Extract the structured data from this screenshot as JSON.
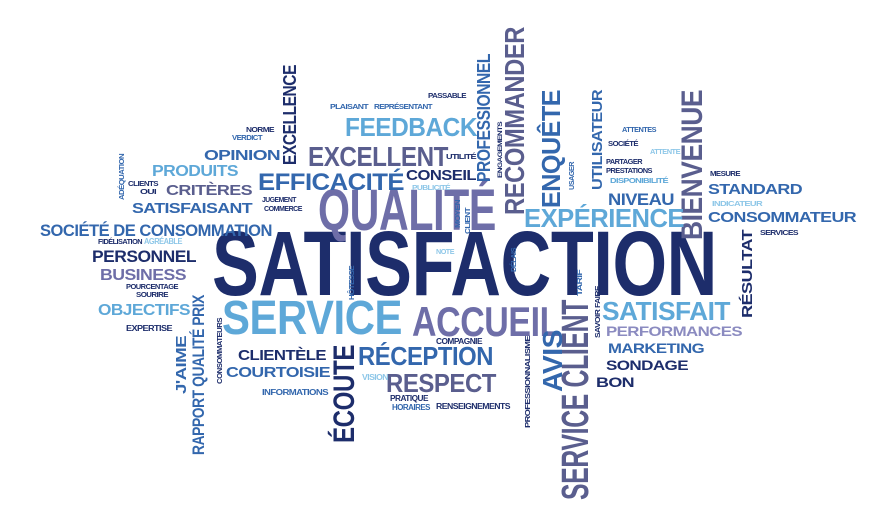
{
  "cloud": {
    "colors": {
      "navy": "#1d2d6b",
      "darkblue": "#2a3f86",
      "blue": "#3367ad",
      "midblue": "#3f7fbf",
      "lightblue": "#5ea8d8",
      "paleblue": "#8ec7e8",
      "slate": "#5a5e8e",
      "purple": "#6e6ea8",
      "lavender": "#8b8bc0"
    },
    "words": [
      {
        "id": "satisfaction",
        "text": "SATISFACTION",
        "color": "navy"
      },
      {
        "id": "qualite",
        "text": "QUALITÉ",
        "color": "purple"
      },
      {
        "id": "service",
        "text": "SERVICE",
        "color": "lightblue"
      },
      {
        "id": "accueil",
        "text": "ACCUEIL",
        "color": "purple"
      },
      {
        "id": "service-client",
        "text": "SERVICE CLIENT",
        "color": "slate"
      },
      {
        "id": "bienvenue",
        "text": "BIENVENUE",
        "color": "slate"
      },
      {
        "id": "recommander",
        "text": "RECOMMANDER",
        "color": "slate"
      },
      {
        "id": "excellent",
        "text": "EXCELLENT",
        "color": "slate"
      },
      {
        "id": "feedback",
        "text": "FEEDBACK",
        "color": "lightblue"
      },
      {
        "id": "efficacite",
        "text": "EFFICACITÉ",
        "color": "blue"
      },
      {
        "id": "experience",
        "text": "EXPÉRIENCE",
        "color": "lightblue"
      },
      {
        "id": "enquete",
        "text": "ENQUÊTE",
        "color": "blue"
      },
      {
        "id": "reception",
        "text": "RÉCEPTION",
        "color": "blue"
      },
      {
        "id": "respect",
        "text": "RESPECT",
        "color": "slate"
      },
      {
        "id": "avis",
        "text": "AVIS",
        "color": "blue"
      },
      {
        "id": "ecoute",
        "text": "ÉCOUTE",
        "color": "navy"
      },
      {
        "id": "satisfait",
        "text": "SATISFAIT",
        "color": "lightblue"
      },
      {
        "id": "excellence",
        "text": "EXCELLENCE",
        "color": "navy"
      },
      {
        "id": "professionnel",
        "text": "PROFESSIONNEL",
        "color": "blue"
      },
      {
        "id": "rapport-qualite-prix",
        "text": "RAPPORT QUALITÉ PRIX",
        "color": "blue"
      },
      {
        "id": "societe-de-consommation",
        "text": "SOCIÉTÉ DE CONSOMMATION",
        "color": "blue"
      },
      {
        "id": "personnel",
        "text": "PERSONNEL",
        "color": "navy"
      },
      {
        "id": "business",
        "text": "BUSINESS",
        "color": "purple"
      },
      {
        "id": "objectifs",
        "text": "OBJECTIFS",
        "color": "lightblue"
      },
      {
        "id": "produits",
        "text": "PRODUITS",
        "color": "lightblue"
      },
      {
        "id": "criteres",
        "text": "CRITÈRES",
        "color": "slate"
      },
      {
        "id": "satisfaisant",
        "text": "SATISFAISANT",
        "color": "blue"
      },
      {
        "id": "opinion",
        "text": "OPINION",
        "color": "blue"
      },
      {
        "id": "conseil",
        "text": "CONSEIL",
        "color": "navy"
      },
      {
        "id": "utilisateur",
        "text": "UTILISATEUR",
        "color": "blue"
      },
      {
        "id": "niveau",
        "text": "NIVEAU",
        "color": "blue"
      },
      {
        "id": "standard",
        "text": "STANDARD",
        "color": "blue"
      },
      {
        "id": "consommateur",
        "text": "CONSOMMATEUR",
        "color": "blue"
      },
      {
        "id": "resultat",
        "text": "RÉSULTAT",
        "color": "navy"
      },
      {
        "id": "performances",
        "text": "PERFORMANCES",
        "color": "lavender"
      },
      {
        "id": "marketing",
        "text": "MARKETING",
        "color": "blue"
      },
      {
        "id": "sondage",
        "text": "SONDAGE",
        "color": "navy"
      },
      {
        "id": "bon",
        "text": "BON",
        "color": "navy"
      },
      {
        "id": "clientele",
        "text": "CLIENTÈLE",
        "color": "navy"
      },
      {
        "id": "courtoisie",
        "text": "COURTOISIE",
        "color": "blue"
      },
      {
        "id": "jaime",
        "text": "J'AIME",
        "color": "blue"
      },
      {
        "id": "expertise",
        "text": "EXPERTISE",
        "color": "navy"
      },
      {
        "id": "informations",
        "text": "INFORMATIONS",
        "color": "blue"
      },
      {
        "id": "vision",
        "text": "VISION",
        "color": "paleblue"
      },
      {
        "id": "pratique",
        "text": "PRATIQUE",
        "color": "navy"
      },
      {
        "id": "horaires",
        "text": "HORAIRES",
        "color": "blue"
      },
      {
        "id": "renseignements",
        "text": "RENSEIGNEMENTS",
        "color": "navy"
      },
      {
        "id": "compagnie",
        "text": "COMPAGNIE",
        "color": "navy"
      },
      {
        "id": "professionnalisme",
        "text": "PROFESSIONNALISME",
        "color": "navy"
      },
      {
        "id": "savoir-faire",
        "text": "SAVOIR FAIRE",
        "color": "navy"
      },
      {
        "id": "tarif",
        "text": "TARIF",
        "color": "blue"
      },
      {
        "id": "delais",
        "text": "DÉLAIS",
        "color": "blue"
      },
      {
        "id": "note",
        "text": "NOTE",
        "color": "paleblue"
      },
      {
        "id": "hotesse",
        "text": "HÔTESSE",
        "color": "blue"
      },
      {
        "id": "consommateurs",
        "text": "CONSOMMATEURS",
        "color": "navy"
      },
      {
        "id": "fidelisation",
        "text": "FIDÉLISATION",
        "color": "navy"
      },
      {
        "id": "agreable",
        "text": "AGRÉABLE",
        "color": "paleblue"
      },
      {
        "id": "pourcentage",
        "text": "POURCENTAGE",
        "color": "navy"
      },
      {
        "id": "sourire",
        "text": "SOURIRE",
        "color": "navy"
      },
      {
        "id": "clients",
        "text": "CLIENTS",
        "color": "navy"
      },
      {
        "id": "qui",
        "text": "OUI",
        "color": "navy"
      },
      {
        "id": "adequation",
        "text": "ADÉQUATION",
        "color": "blue"
      },
      {
        "id": "verdict",
        "text": "VERDICT",
        "color": "blue"
      },
      {
        "id": "norme",
        "text": "NORME",
        "color": "navy"
      },
      {
        "id": "jugement",
        "text": "JUGEMENT",
        "color": "navy"
      },
      {
        "id": "commerce",
        "text": "COMMERCE",
        "color": "navy"
      },
      {
        "id": "plaisant",
        "text": "PLAISANT",
        "color": "blue"
      },
      {
        "id": "representant",
        "text": "REPRÉSENTANT",
        "color": "blue"
      },
      {
        "id": "passable",
        "text": "PASSABLE",
        "color": "navy"
      },
      {
        "id": "utilite",
        "text": "UTILITÉ",
        "color": "navy"
      },
      {
        "id": "engagements",
        "text": "ENGAGEMENTS",
        "color": "navy"
      },
      {
        "id": "publicite",
        "text": "PUBLICITÉ",
        "color": "paleblue"
      },
      {
        "id": "moyen",
        "text": "MOYEN",
        "color": "blue"
      },
      {
        "id": "client",
        "text": "CLIENT",
        "color": "blue"
      },
      {
        "id": "usager",
        "text": "USAGER",
        "color": "blue"
      },
      {
        "id": "attentes",
        "text": "ATTENTES",
        "color": "blue"
      },
      {
        "id": "societe",
        "text": "SOCIÉTÉ",
        "color": "navy"
      },
      {
        "id": "attente",
        "text": "ATTENTE",
        "color": "paleblue"
      },
      {
        "id": "partager",
        "text": "PARTAGER",
        "color": "navy"
      },
      {
        "id": "prestations",
        "text": "PRESTATIONS",
        "color": "navy"
      },
      {
        "id": "disponibilite",
        "text": "DISPONIBILITÉ",
        "color": "lightblue"
      },
      {
        "id": "mesure",
        "text": "MESURE",
        "color": "navy"
      },
      {
        "id": "indicateur",
        "text": "INDICATEUR",
        "color": "paleblue"
      },
      {
        "id": "services",
        "text": "SERVICES",
        "color": "navy"
      }
    ]
  }
}
